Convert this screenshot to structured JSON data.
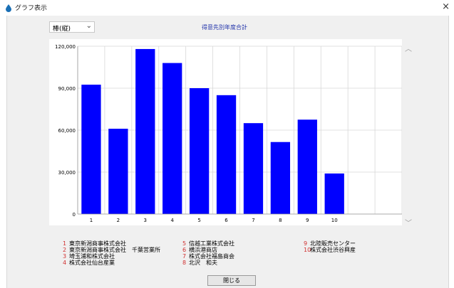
{
  "window": {
    "title": "グラフ表示",
    "close_glyph": "×"
  },
  "controls": {
    "chart_type_selected": "棒(縦)"
  },
  "chart_data": {
    "type": "bar",
    "title": "得意先別年度合計",
    "categories": [
      "1",
      "2",
      "3",
      "4",
      "5",
      "6",
      "7",
      "8",
      "9",
      "10",
      "",
      ""
    ],
    "values": [
      92500,
      61000,
      118000,
      108000,
      90000,
      85000,
      65000,
      51500,
      67500,
      29000,
      null,
      null
    ],
    "y_ticks": [
      "0",
      "30,000",
      "60,000",
      "90,000",
      "120,000"
    ],
    "ylim": [
      0,
      120000
    ],
    "bar_color": "#0000ff",
    "grid": true,
    "xlabel": "",
    "ylabel": ""
  },
  "legend": [
    {
      "num": "1",
      "name": "東京新潟商事株式会社"
    },
    {
      "num": "2",
      "name": "東京新潟商事株式会社　千葉営業所"
    },
    {
      "num": "3",
      "name": "埼玉浦和株式会社"
    },
    {
      "num": "4",
      "name": "株式会社仙台産業"
    },
    {
      "num": "5",
      "name": "信越工業株式会社"
    },
    {
      "num": "6",
      "name": "横浜港商店"
    },
    {
      "num": "7",
      "name": "株式会社福島商会"
    },
    {
      "num": "8",
      "name": "北沢　和夫"
    },
    {
      "num": "9",
      "name": "北陸販売センター"
    },
    {
      "num": "10",
      "name": "株式会社渋谷興産"
    }
  ],
  "buttons": {
    "close_label": "閉じる"
  },
  "colors": {
    "legend_number": "#d03030",
    "title": "#2233aa"
  },
  "icons": {
    "app": "droplet-icon",
    "scroll_up": "chevron-up-icon",
    "scroll_down": "chevron-down-icon"
  }
}
